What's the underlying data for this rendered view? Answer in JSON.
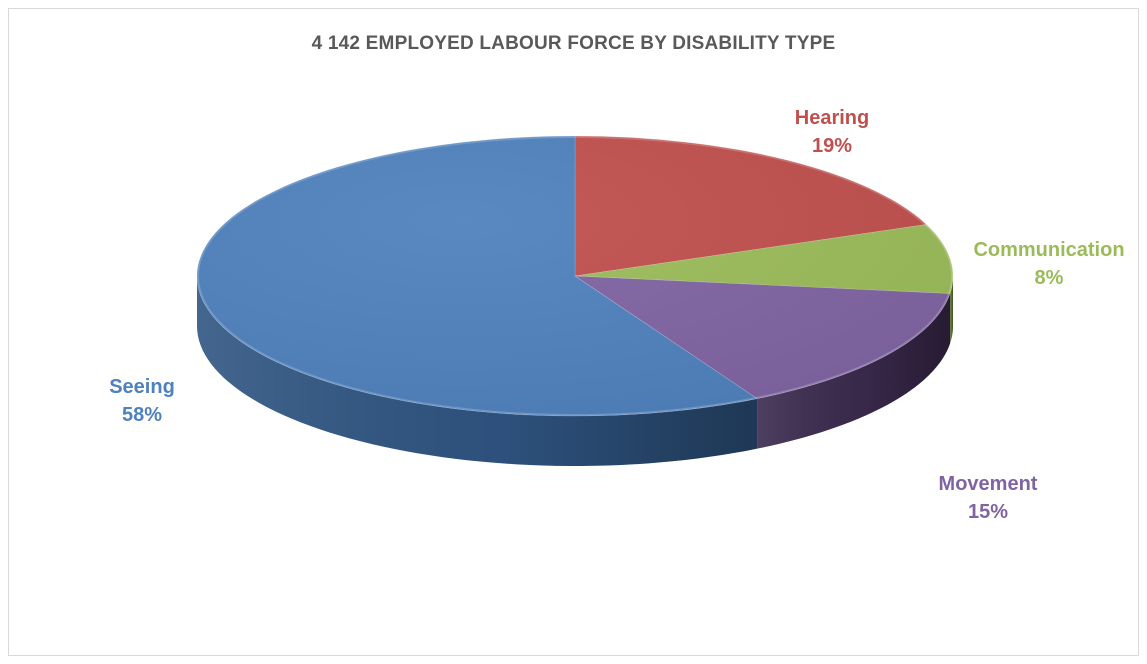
{
  "chart_data": {
    "type": "pie",
    "title": "4 142 EMPLOYED LABOUR FORCE BY DISABILITY TYPE",
    "slices": [
      {
        "name": "Hearing",
        "value": 19,
        "label": "19%",
        "color": "#c0504d",
        "side_color": "#7a2f2d"
      },
      {
        "name": "Communication",
        "value": 8,
        "label": "8%",
        "color": "#9bbb59",
        "side_color": "#5e7535"
      },
      {
        "name": "Movement",
        "value": 15,
        "label": "15%",
        "color": "#8064a2",
        "side_color": "#3b2a4e"
      },
      {
        "name": "Seeing",
        "value": 58,
        "label": "58%",
        "color": "#4f81bd",
        "side_color": "#2f5582"
      }
    ],
    "legend": "none",
    "data_labels": "outside"
  }
}
